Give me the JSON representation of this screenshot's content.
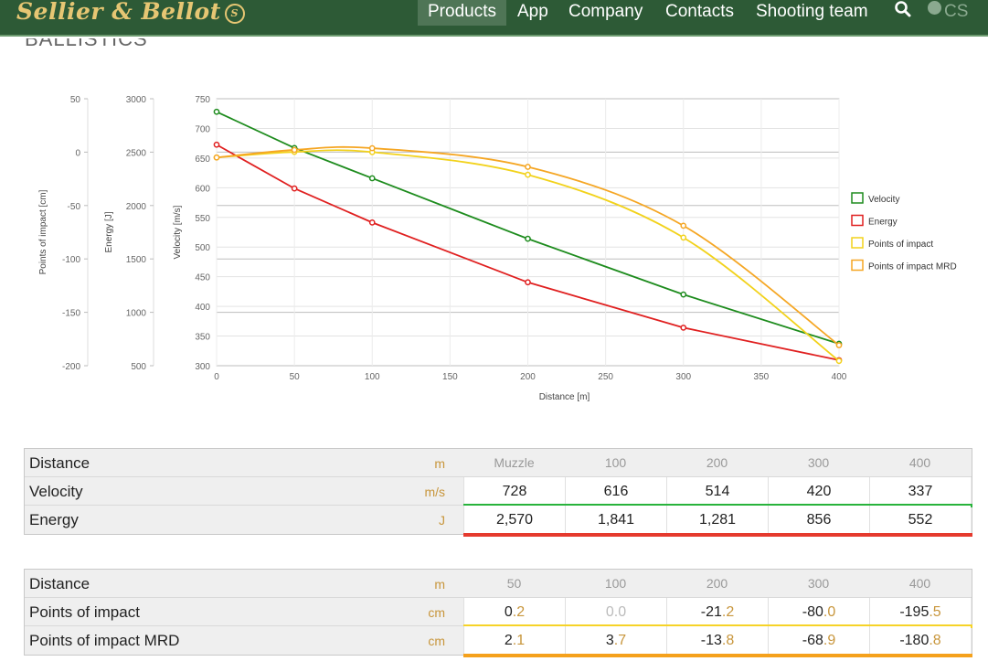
{
  "brand": {
    "name": "Sellier & Bellot",
    "seal": "S"
  },
  "nav": {
    "items": [
      "Products",
      "App",
      "Company",
      "Contacts",
      "Shooting team"
    ],
    "active": "Products",
    "lang": "CS"
  },
  "section": {
    "title": "BALLISTICS"
  },
  "chart_data": {
    "type": "line",
    "xlabel": "Distance [m]",
    "xlim": [
      0,
      400
    ],
    "xticks": [
      "0",
      "50",
      "100",
      "150",
      "200",
      "250",
      "300",
      "350",
      "400"
    ],
    "axes": {
      "velocity": {
        "label": "Velocity [m/s]",
        "ticks": [
          "300",
          "350",
          "400",
          "450",
          "500",
          "550",
          "600",
          "650",
          "700",
          "750"
        ],
        "range": [
          300,
          750
        ]
      },
      "energy": {
        "label": "Energy [J]",
        "ticks": [
          "500",
          "1000",
          "1500",
          "2000",
          "2500",
          "3000"
        ],
        "range": [
          500,
          3000
        ]
      },
      "poi": {
        "label": "Points of impact [cm]",
        "ticks": [
          "-200",
          "-150",
          "-100",
          "-50",
          "0",
          "50"
        ],
        "range": [
          -200,
          50
        ]
      }
    },
    "series": [
      {
        "name": "Velocity",
        "axis": "velocity",
        "color": "#1e8c1e",
        "x": [
          0,
          50,
          100,
          200,
          300,
          400
        ],
        "values": [
          728,
          667,
          616,
          514,
          420,
          337
        ]
      },
      {
        "name": "Energy",
        "axis": "energy",
        "color": "#e02020",
        "x": [
          0,
          50,
          100,
          200,
          300,
          400
        ],
        "values": [
          2570,
          2160,
          1841,
          1281,
          856,
          552
        ]
      },
      {
        "name": "Points of impact",
        "axis": "poi",
        "color": "#f2d21b",
        "x": [
          0,
          50,
          100,
          200,
          300,
          400
        ],
        "values": [
          -5,
          0.2,
          0.0,
          -21.2,
          -80.0,
          -195.5
        ]
      },
      {
        "name": "Points of impact MRD",
        "axis": "poi",
        "color": "#f5a623",
        "x": [
          0,
          50,
          100,
          200,
          300,
          400
        ],
        "values": [
          -5,
          2.1,
          3.7,
          -13.8,
          -68.9,
          -180.8
        ]
      }
    ],
    "grid": true,
    "legend_position": "right"
  },
  "table1": {
    "rows": [
      {
        "label": "Distance",
        "unit": "m",
        "cells": [
          "Muzzle",
          "100",
          "200",
          "300",
          "400"
        ],
        "head": true
      },
      {
        "label": "Velocity",
        "unit": "m/s",
        "cells": [
          "728",
          "616",
          "514",
          "420",
          "337"
        ],
        "bar": "#28b33c"
      },
      {
        "label": "Energy",
        "unit": "J",
        "cells": [
          "2,570",
          "1,841",
          "1,281",
          "856",
          "552"
        ],
        "bar": "#e53a2e"
      }
    ]
  },
  "table2": {
    "rows": [
      {
        "label": "Distance",
        "unit": "m",
        "cells": [
          "50",
          "100",
          "200",
          "300",
          "400"
        ],
        "head": true
      },
      {
        "label": "Points of impact",
        "unit": "cm",
        "cells": [
          [
            "0",
            ".2"
          ],
          [
            "0",
            ".0"
          ],
          [
            "-21",
            ".2"
          ],
          [
            "-80",
            ".0"
          ],
          [
            "-195",
            ".5"
          ]
        ],
        "bar": "#f6d327",
        "muted": [
          1
        ]
      },
      {
        "label": "Points of impact MRD",
        "unit": "cm",
        "cells": [
          [
            "2",
            ".1"
          ],
          [
            "3",
            ".7"
          ],
          [
            "-13",
            ".8"
          ],
          [
            "-68",
            ".9"
          ],
          [
            "-180",
            ".8"
          ]
        ],
        "bar": "#f5a11c"
      }
    ]
  }
}
